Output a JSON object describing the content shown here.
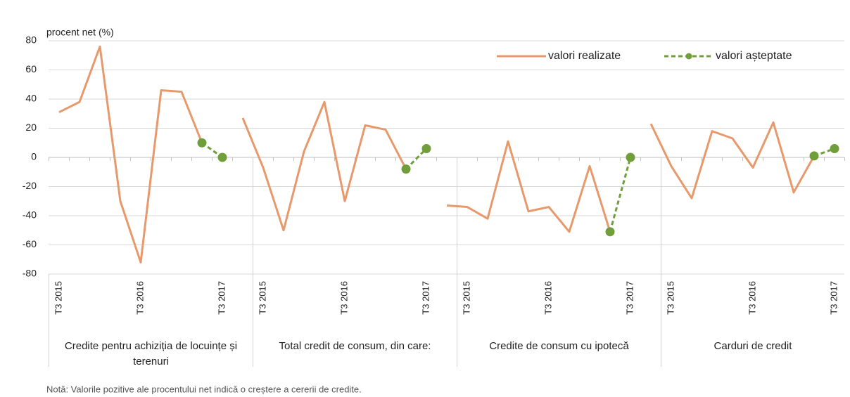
{
  "chart_data": {
    "type": "line",
    "y_label": "procent net (%)",
    "categories": [
      "T3 2015",
      null,
      null,
      null,
      "T3 2016",
      null,
      null,
      null,
      "T3 2017",
      null,
      "T3 2015",
      null,
      null,
      null,
      "T3 2016",
      null,
      null,
      null,
      "T3 2017",
      null,
      "T3 2015",
      null,
      null,
      null,
      "T3 2016",
      null,
      null,
      null,
      "T3 2017",
      null,
      "T3 2015",
      null,
      null,
      null,
      "T3 2016",
      null,
      null,
      null,
      "T3 2017"
    ],
    "groups": [
      "Credite pentru achiziția de locuințe și terenuri",
      "Total credit de consum, din care:",
      "Credite de consum cu ipotecă",
      "Carduri de credit"
    ],
    "series": [
      {
        "name": "valori realizate",
        "color": "#e8996c",
        "dashed": false,
        "values": [
          31,
          38,
          76,
          -30,
          -72,
          46,
          45,
          10,
          null,
          27,
          -7,
          -50,
          4,
          38,
          -30,
          22,
          19,
          -8,
          null,
          -33,
          -34,
          -42,
          11,
          -37,
          -34,
          -51,
          -6,
          -51,
          null,
          23,
          -6,
          -28,
          18,
          13,
          -7,
          24,
          -24,
          1,
          null
        ]
      },
      {
        "name": "valori așteptate",
        "color": "#6f9e3a",
        "dashed": true,
        "values": [
          null,
          null,
          null,
          null,
          null,
          null,
          null,
          10,
          0,
          null,
          null,
          null,
          null,
          null,
          null,
          null,
          null,
          -8,
          6,
          null,
          null,
          null,
          null,
          null,
          null,
          null,
          null,
          -51,
          0,
          null,
          null,
          null,
          null,
          null,
          null,
          null,
          null,
          1,
          6
        ]
      }
    ],
    "ylim": [
      -80,
      80
    ],
    "yticks": [
      -80,
      -60,
      -40,
      -20,
      0,
      20,
      40,
      60,
      80
    ],
    "grid": true,
    "legend": "top-right",
    "note": "Notă: Valorile pozitive ale procentului net indică o creștere a cererii de credite."
  }
}
